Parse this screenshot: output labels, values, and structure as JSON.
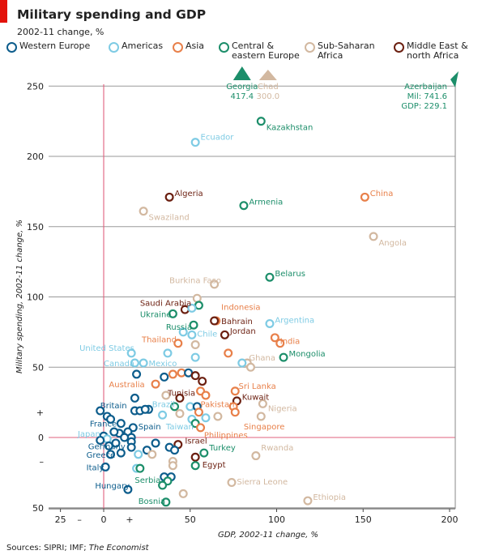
{
  "header": {
    "title": "Military spending and GDP",
    "subtitle": "2002-11 change, %"
  },
  "legend": [
    {
      "key": "we",
      "label": "Western Europe",
      "color": "#0d5d8c"
    },
    {
      "key": "am",
      "label": "Americas",
      "color": "#7ecbe4"
    },
    {
      "key": "as",
      "label": "Asia",
      "color": "#e8804a"
    },
    {
      "key": "ce",
      "label": "Central &\neastern Europe",
      "color": "#1c8e6a"
    },
    {
      "key": "ss",
      "label": "Sub-Saharan\nAfrica",
      "color": "#d2b8a0"
    },
    {
      "key": "me",
      "label": "Middle East &\nnorth Africa",
      "color": "#6b1f10"
    }
  ],
  "footer": {
    "source_prefix": "Sources: SIPRI; IMF; ",
    "source_italic": "The Economist"
  },
  "chart_data": {
    "type": "scatter",
    "xlabel": "GDP, 2002-11 change, %",
    "ylabel": "Military spending, 2002-11 change, %",
    "xlim": [
      -30,
      205
    ],
    "ylim": [
      -50,
      255
    ],
    "xticks": [
      {
        "v": -25,
        "label": "25"
      },
      {
        "v": 0,
        "label": "0"
      },
      {
        "v": 50,
        "label": "50"
      },
      {
        "v": 100,
        "label": "100"
      },
      {
        "v": 150,
        "label": "150"
      },
      {
        "v": 200,
        "label": "200"
      }
    ],
    "xsigns": [
      {
        "v": -14,
        "label": "–"
      },
      {
        "v": 15,
        "label": "+"
      }
    ],
    "yticks": [
      {
        "v": 250,
        "label": "250"
      },
      {
        "v": 200,
        "label": "200"
      },
      {
        "v": 150,
        "label": "150"
      },
      {
        "v": 100,
        "label": "100"
      },
      {
        "v": 50,
        "label": "50"
      },
      {
        "v": 0,
        "label": "0"
      },
      {
        "v": -50,
        "label": "50"
      }
    ],
    "ysigns": [
      {
        "v": 18,
        "label": "+"
      },
      {
        "v": -17,
        "label": "–"
      }
    ],
    "outliers": [
      {
        "name": "Georgia",
        "value": "417.4",
        "x": 80,
        "region": "ce"
      },
      {
        "name": "Chad",
        "value": "300.0",
        "x": 95,
        "region": "ss"
      },
      {
        "name": "Azerbaijan",
        "line1": "Mil: 741.6",
        "line2": "GDP: 229.1",
        "region": "ce"
      }
    ],
    "points": [
      {
        "x": 91,
        "y": 225,
        "r": "ce",
        "label": "Kazakhstan",
        "lx": 94,
        "ly": 221,
        "anchor": "start"
      },
      {
        "x": 53,
        "y": 210,
        "r": "am",
        "label": "Ecuador",
        "lx": 56,
        "ly": 214,
        "anchor": "start"
      },
      {
        "x": 38,
        "y": 171,
        "r": "me",
        "label": "Algeria",
        "lx": 41,
        "ly": 174,
        "anchor": "start"
      },
      {
        "x": 81,
        "y": 165,
        "r": "ce",
        "label": "Armenia",
        "lx": 84,
        "ly": 168,
        "anchor": "start"
      },
      {
        "x": 23,
        "y": 161,
        "r": "ss",
        "label": "Swaziland",
        "lx": 26,
        "ly": 157,
        "anchor": "start"
      },
      {
        "x": 151,
        "y": 171,
        "r": "as",
        "label": "China",
        "lx": 154,
        "ly": 174,
        "anchor": "start"
      },
      {
        "x": 156,
        "y": 143,
        "r": "ss",
        "label": "Angola",
        "lx": 159,
        "ly": 139,
        "anchor": "start"
      },
      {
        "x": 64,
        "y": 109,
        "r": "ss",
        "label": "Burkina Faso",
        "lx": 38,
        "ly": 112,
        "anchor": "start"
      },
      {
        "x": 96,
        "y": 114,
        "r": "ce",
        "label": "Belarus",
        "lx": 99,
        "ly": 117,
        "anchor": "start"
      },
      {
        "x": 54,
        "y": 99,
        "r": "ss"
      },
      {
        "x": 55,
        "y": 94,
        "r": "ce"
      },
      {
        "x": 47,
        "y": 91,
        "r": "me",
        "label": "Saudi Arabia",
        "lx": 21,
        "ly": 96,
        "anchor": "start"
      },
      {
        "x": 40,
        "y": 88,
        "r": "ce",
        "label": "Ukraine",
        "lx": 21,
        "ly": 88,
        "anchor": "start"
      },
      {
        "x": 51,
        "y": 92,
        "r": "am"
      },
      {
        "x": 65,
        "y": 83,
        "r": "as",
        "label": "Indonesia",
        "lx": 68,
        "ly": 93,
        "anchor": "start"
      },
      {
        "x": 64,
        "y": 83,
        "r": "me",
        "label": "Bahrain",
        "lx": 68,
        "ly": 83,
        "anchor": "start"
      },
      {
        "x": 96,
        "y": 81,
        "r": "am",
        "label": "Argentina",
        "lx": 99,
        "ly": 84,
        "anchor": "start"
      },
      {
        "x": 52,
        "y": 80,
        "r": "ce",
        "label": "Russia",
        "lx": 36,
        "ly": 79,
        "anchor": "start"
      },
      {
        "x": 46,
        "y": 75,
        "r": "am"
      },
      {
        "x": 51,
        "y": 73,
        "r": "am",
        "label": "Chile",
        "lx": 54,
        "ly": 74,
        "anchor": "start"
      },
      {
        "x": 70,
        "y": 73,
        "r": "me",
        "label": "Jordan",
        "lx": 73,
        "ly": 76,
        "anchor": "start"
      },
      {
        "x": 99,
        "y": 71,
        "r": "as",
        "label": "India",
        "lx": 102,
        "ly": 69,
        "anchor": "start"
      },
      {
        "x": 102,
        "y": 67,
        "r": "as"
      },
      {
        "x": 43,
        "y": 67,
        "r": "as",
        "label": "Thailand",
        "lx": 22,
        "ly": 70,
        "anchor": "start"
      },
      {
        "x": 53,
        "y": 66,
        "r": "ss"
      },
      {
        "x": 37,
        "y": 60,
        "r": "am",
        "label": "United States",
        "lx": -14,
        "ly": 64,
        "anchor": "start"
      },
      {
        "x": 72,
        "y": 60,
        "r": "as"
      },
      {
        "x": 104,
        "y": 57,
        "r": "ce",
        "label": "Mongolia",
        "lx": 107,
        "ly": 60,
        "anchor": "start"
      },
      {
        "x": 53,
        "y": 57,
        "r": "am"
      },
      {
        "x": 16,
        "y": 60,
        "r": "am"
      },
      {
        "x": 83,
        "y": 53,
        "r": "ss",
        "label": "Ghana",
        "lx": 84,
        "ly": 57,
        "anchor": "start"
      },
      {
        "x": 85,
        "y": 50,
        "r": "ss"
      },
      {
        "x": 18,
        "y": 53,
        "r": "am",
        "label": "Canada",
        "lx": 0,
        "ly": 53,
        "anchor": "start"
      },
      {
        "x": 23,
        "y": 53,
        "r": "am",
        "label": "Mexico",
        "lx": 26,
        "ly": 53,
        "anchor": "start"
      },
      {
        "x": 80,
        "y": 53,
        "r": "am"
      },
      {
        "x": 19,
        "y": 45,
        "r": "we"
      },
      {
        "x": 40,
        "y": 45,
        "r": "as"
      },
      {
        "x": 45,
        "y": 46,
        "r": "as"
      },
      {
        "x": 49,
        "y": 46,
        "r": "we"
      },
      {
        "x": 53,
        "y": 44,
        "r": "me"
      },
      {
        "x": 57,
        "y": 40,
        "r": "me"
      },
      {
        "x": 35,
        "y": 43,
        "r": "we"
      },
      {
        "x": 30,
        "y": 38,
        "r": "as",
        "label": "Australia",
        "lx": 3,
        "ly": 38,
        "anchor": "start"
      },
      {
        "x": 56,
        "y": 33,
        "r": "as"
      },
      {
        "x": 59,
        "y": 30,
        "r": "as"
      },
      {
        "x": 76,
        "y": 33,
        "r": "as",
        "label": "Sri Lanka",
        "lx": 78,
        "ly": 37,
        "anchor": "start"
      },
      {
        "x": 44,
        "y": 28,
        "r": "me",
        "label": "Tunisia",
        "lx": 37,
        "ly": 32,
        "anchor": "start"
      },
      {
        "x": 18,
        "y": 28,
        "r": "we"
      },
      {
        "x": 36,
        "y": 30,
        "r": "ss"
      },
      {
        "x": 77,
        "y": 26,
        "r": "me",
        "label": "Kuwait",
        "lx": 80,
        "ly": 29,
        "anchor": "start"
      },
      {
        "x": 75,
        "y": 22,
        "r": "as"
      },
      {
        "x": 92,
        "y": 24,
        "r": "ss",
        "label": "Nigeria",
        "lx": 95,
        "ly": 21,
        "anchor": "start"
      },
      {
        "x": 50,
        "y": 22,
        "r": "am",
        "label": "Brazil",
        "lx": 28,
        "ly": 24,
        "anchor": "start"
      },
      {
        "x": 41,
        "y": 22,
        "r": "ce"
      },
      {
        "x": 54,
        "y": 22,
        "r": "we"
      },
      {
        "x": 55,
        "y": 18,
        "r": "as",
        "label": "Pakistan",
        "lx": 56,
        "ly": 24,
        "anchor": "start"
      },
      {
        "x": 18,
        "y": 19,
        "r": "we"
      },
      {
        "x": 21,
        "y": 19,
        "r": "we"
      },
      {
        "x": 26,
        "y": 20,
        "r": "we"
      },
      {
        "x": 24,
        "y": 20,
        "r": "we"
      },
      {
        "x": -2,
        "y": 19,
        "r": "we",
        "label": "Britain",
        "lx": -2,
        "ly": 23,
        "anchor": "start"
      },
      {
        "x": 2,
        "y": 15,
        "r": "we"
      },
      {
        "x": 4,
        "y": 13,
        "r": "we"
      },
      {
        "x": 34,
        "y": 16,
        "r": "am"
      },
      {
        "x": 44,
        "y": 17,
        "r": "ss"
      },
      {
        "x": 76,
        "y": 18,
        "r": "as",
        "label": "Singapore",
        "lx": 81,
        "ly": 8,
        "anchor": "start"
      },
      {
        "x": 66,
        "y": 15,
        "r": "ss"
      },
      {
        "x": 59,
        "y": 14,
        "r": "am"
      },
      {
        "x": 51,
        "y": 13,
        "r": "am",
        "label": "Taiwan",
        "lx": 36,
        "ly": 8,
        "anchor": "start"
      },
      {
        "x": 53,
        "y": 10,
        "r": "ce"
      },
      {
        "x": 56,
        "y": 7,
        "r": "as",
        "label": "Philippines",
        "lx": 58,
        "ly": 2,
        "anchor": "start"
      },
      {
        "x": 91,
        "y": 15,
        "r": "ss"
      },
      {
        "x": 17,
        "y": 7,
        "r": "we",
        "label": "Spain",
        "lx": 20,
        "ly": 8,
        "anchor": "start"
      },
      {
        "x": 10,
        "y": 10,
        "r": "we",
        "label": "France",
        "lx": -8,
        "ly": 10,
        "anchor": "start"
      },
      {
        "x": 14,
        "y": 4,
        "r": "we"
      },
      {
        "x": 9,
        "y": 3,
        "r": "we"
      },
      {
        "x": 6,
        "y": 4,
        "r": "we"
      },
      {
        "x": 0,
        "y": 1,
        "r": "we"
      },
      {
        "x": 2,
        "y": -1,
        "r": "am",
        "label": "Japan",
        "lx": -15,
        "ly": 3,
        "anchor": "start"
      },
      {
        "x": -2,
        "y": -2,
        "r": "we"
      },
      {
        "x": 16,
        "y": 0,
        "r": "we"
      },
      {
        "x": 16,
        "y": -3,
        "r": "we"
      },
      {
        "x": 12,
        "y": 0,
        "r": "we"
      },
      {
        "x": 7,
        "y": -4,
        "r": "we"
      },
      {
        "x": 3,
        "y": -6,
        "r": "we",
        "label": "Germany",
        "lx": -9,
        "ly": -6,
        "anchor": "start"
      },
      {
        "x": 16,
        "y": -7,
        "r": "we"
      },
      {
        "x": 30,
        "y": -4,
        "r": "we"
      },
      {
        "x": 25,
        "y": -9,
        "r": "we"
      },
      {
        "x": 38,
        "y": -7,
        "r": "we"
      },
      {
        "x": 43,
        "y": -5,
        "r": "me",
        "label": "Israel",
        "lx": 47,
        "ly": -2,
        "anchor": "start"
      },
      {
        "x": 41,
        "y": -9,
        "r": "we"
      },
      {
        "x": 20,
        "y": -12,
        "r": "am"
      },
      {
        "x": 28,
        "y": -12,
        "r": "ss"
      },
      {
        "x": 10,
        "y": -11,
        "r": "we"
      },
      {
        "x": 4,
        "y": -12,
        "r": "we",
        "label": "Greece",
        "lx": -10,
        "ly": -12,
        "anchor": "start"
      },
      {
        "x": 58,
        "y": -11,
        "r": "ce",
        "label": "Turkey",
        "lx": 61,
        "ly": -7,
        "anchor": "start"
      },
      {
        "x": 88,
        "y": -13,
        "r": "ss",
        "label": "Rwanda",
        "lx": 91,
        "ly": -7,
        "anchor": "start"
      },
      {
        "x": 53,
        "y": -14,
        "r": "me",
        "label": "Egypt",
        "lx": 57,
        "ly": -19,
        "anchor": "start"
      },
      {
        "x": 40,
        "y": -17,
        "r": "ss"
      },
      {
        "x": 40,
        "y": -20,
        "r": "ss"
      },
      {
        "x": 53,
        "y": -20,
        "r": "ce"
      },
      {
        "x": 1,
        "y": -21,
        "r": "we",
        "label": "Italy",
        "lx": -10,
        "ly": -21,
        "anchor": "start"
      },
      {
        "x": 19,
        "y": -22,
        "r": "am"
      },
      {
        "x": 21,
        "y": -22,
        "r": "ce"
      },
      {
        "x": 35,
        "y": -28,
        "r": "we"
      },
      {
        "x": 39,
        "y": -28,
        "r": "we"
      },
      {
        "x": 37,
        "y": -31,
        "r": "ce",
        "label": "Serbia",
        "lx": 18,
        "ly": -30,
        "anchor": "start"
      },
      {
        "x": 34,
        "y": -34,
        "r": "ce"
      },
      {
        "x": 14,
        "y": -37,
        "r": "we",
        "label": "Hungary",
        "lx": -5,
        "ly": -34,
        "anchor": "start"
      },
      {
        "x": 74,
        "y": -32,
        "r": "ss",
        "label": "Sierra Leone",
        "lx": 77,
        "ly": -31,
        "anchor": "start"
      },
      {
        "x": 46,
        "y": -40,
        "r": "ss"
      },
      {
        "x": 36,
        "y": -46,
        "r": "ce",
        "label": "Bosnia",
        "lx": 20,
        "ly": -45,
        "anchor": "start"
      },
      {
        "x": 118,
        "y": -45,
        "r": "ss",
        "label": "Ethiopia",
        "lx": 121,
        "ly": -42,
        "anchor": "start"
      }
    ]
  }
}
